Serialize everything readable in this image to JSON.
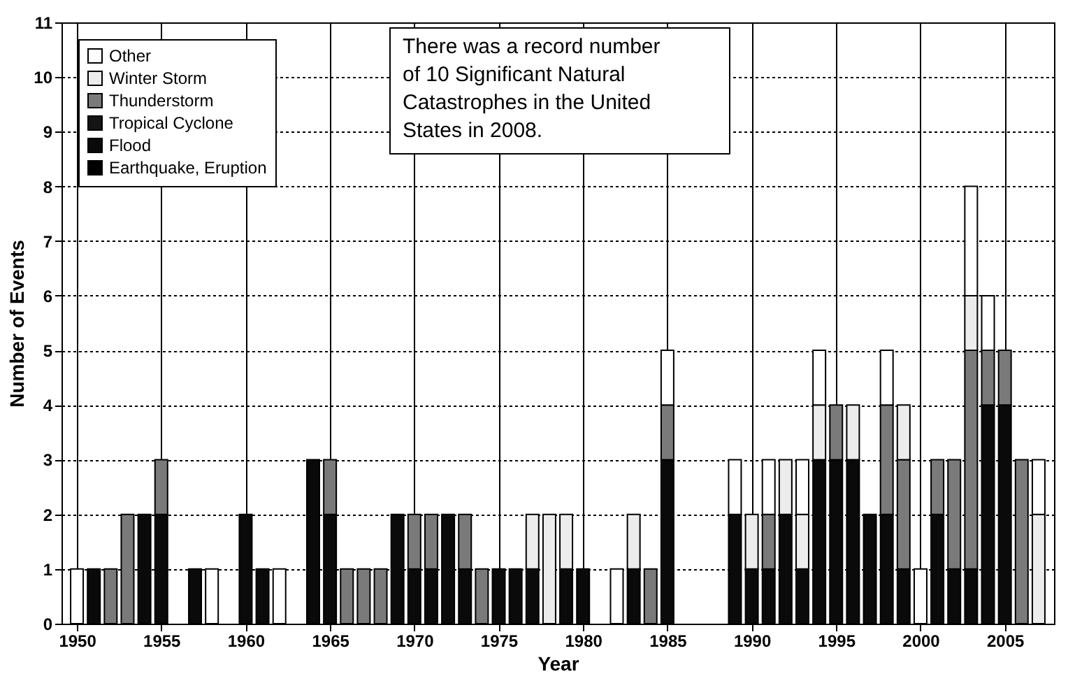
{
  "chart_data": {
    "type": "bar",
    "stacked": true,
    "xlabel": "Year",
    "ylabel": "Number of Events",
    "x": [
      1950,
      1951,
      1952,
      1953,
      1954,
      1955,
      1956,
      1957,
      1958,
      1959,
      1960,
      1961,
      1962,
      1963,
      1964,
      1965,
      1966,
      1967,
      1968,
      1969,
      1970,
      1971,
      1972,
      1973,
      1974,
      1975,
      1976,
      1977,
      1978,
      1979,
      1980,
      1981,
      1982,
      1983,
      1984,
      1985,
      1986,
      1987,
      1988,
      1989,
      1990,
      1991,
      1992,
      1993,
      1994,
      1995,
      1996,
      1997,
      1998,
      1999,
      2000,
      2001,
      2002,
      2003,
      2004,
      2005,
      2006,
      2007
    ],
    "series": [
      {
        "name": "Earthquake, Eruption",
        "color": "#000000",
        "values": [
          null,
          null,
          null,
          null,
          null,
          null,
          null,
          null,
          null,
          null,
          null,
          null,
          null,
          null,
          null,
          null,
          null,
          null,
          null,
          null,
          null,
          null,
          null,
          null,
          null,
          null,
          null,
          null,
          null,
          null,
          null,
          null,
          null,
          null,
          null,
          null,
          null,
          null,
          null,
          null,
          null,
          null,
          null,
          null,
          null,
          null,
          null,
          null,
          null,
          null,
          null,
          null,
          null,
          null,
          null,
          null,
          null,
          null
        ]
      },
      {
        "name": "Flood",
        "color": "#0a0a0a",
        "values": [
          null,
          1,
          null,
          null,
          2,
          2,
          null,
          1,
          null,
          null,
          2,
          1,
          null,
          null,
          3,
          2,
          null,
          null,
          null,
          2,
          1,
          1,
          2,
          1,
          null,
          1,
          1,
          1,
          null,
          1,
          1,
          null,
          null,
          1,
          null,
          3,
          null,
          null,
          null,
          2,
          1,
          1,
          2,
          1,
          3,
          3,
          3,
          2,
          2,
          1,
          null,
          2,
          1,
          1,
          4,
          4,
          null,
          null
        ]
      },
      {
        "name": "Tropical Cyclone",
        "color": "#151515",
        "values": [
          null,
          null,
          null,
          null,
          null,
          null,
          null,
          null,
          null,
          null,
          null,
          null,
          null,
          null,
          null,
          null,
          null,
          null,
          null,
          null,
          null,
          null,
          null,
          null,
          null,
          null,
          null,
          null,
          null,
          null,
          null,
          null,
          null,
          null,
          null,
          null,
          null,
          null,
          null,
          null,
          null,
          null,
          null,
          null,
          null,
          null,
          null,
          null,
          null,
          null,
          null,
          null,
          null,
          null,
          null,
          null,
          null,
          null
        ]
      },
      {
        "name": "Thunderstorm",
        "color": "#7a7a7a",
        "values": [
          null,
          null,
          1,
          2,
          null,
          1,
          null,
          null,
          null,
          null,
          null,
          null,
          null,
          null,
          null,
          1,
          1,
          1,
          1,
          null,
          1,
          1,
          null,
          1,
          1,
          null,
          null,
          null,
          null,
          null,
          null,
          null,
          null,
          null,
          1,
          1,
          null,
          null,
          null,
          null,
          null,
          1,
          null,
          null,
          null,
          1,
          null,
          null,
          2,
          2,
          null,
          1,
          2,
          4,
          1,
          1,
          3,
          null
        ]
      },
      {
        "name": "Winter Storm",
        "color": "#ececec",
        "values": [
          null,
          null,
          null,
          null,
          null,
          null,
          null,
          null,
          null,
          null,
          null,
          null,
          null,
          null,
          null,
          null,
          null,
          null,
          null,
          null,
          null,
          null,
          null,
          null,
          null,
          null,
          null,
          1,
          2,
          1,
          null,
          null,
          null,
          1,
          null,
          null,
          null,
          null,
          null,
          null,
          1,
          null,
          1,
          1,
          1,
          null,
          1,
          null,
          null,
          1,
          null,
          null,
          null,
          1,
          null,
          null,
          null,
          2
        ]
      },
      {
        "name": "Other",
        "color": "#ffffff",
        "values": [
          1,
          null,
          null,
          null,
          null,
          null,
          null,
          null,
          1,
          null,
          null,
          null,
          1,
          null,
          null,
          null,
          null,
          null,
          null,
          null,
          null,
          null,
          null,
          null,
          null,
          null,
          null,
          null,
          null,
          null,
          null,
          null,
          1,
          null,
          null,
          1,
          null,
          null,
          null,
          1,
          null,
          1,
          null,
          1,
          1,
          null,
          null,
          null,
          1,
          null,
          1,
          null,
          null,
          2,
          1,
          null,
          null,
          1
        ]
      }
    ],
    "xlim": [
      1949.5,
      2007.5
    ],
    "xticks": [
      1950,
      1955,
      1960,
      1965,
      1970,
      1975,
      1980,
      1985,
      1990,
      1995,
      2000,
      2005
    ],
    "ylim": [
      0,
      11
    ],
    "yticks": [
      0,
      1,
      2,
      3,
      4,
      5,
      6,
      7,
      8,
      9,
      10,
      11
    ],
    "grid": true,
    "legend": "top left",
    "annotations": [
      "There was a record number of 10 Significant Natural Catastrophes in the United States in 2008."
    ]
  }
}
